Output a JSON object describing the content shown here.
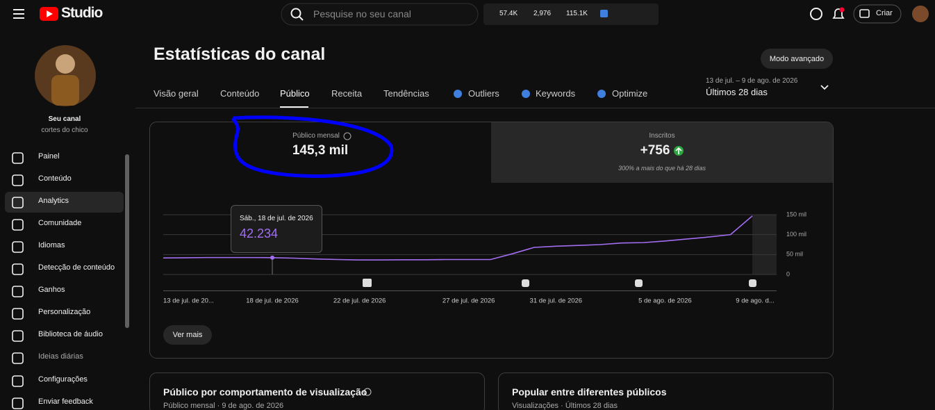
{
  "header": {
    "logo": "Studio",
    "search_placeholder": "Pesquise no seu canal",
    "stats": [
      "57.4K",
      "2,976",
      "115.1K"
    ],
    "create": "Criar"
  },
  "channel": {
    "label": "Seu canal",
    "name": "cortes do chico"
  },
  "nav": [
    "Painel",
    "Conteúdo",
    "Analytics",
    "Comunidade",
    "Idiomas",
    "Detecção de conteúdo",
    "Ganhos",
    "Personalização",
    "Biblioteca de áudio",
    "Ideias diárias",
    "Configurações",
    "Enviar feedback"
  ],
  "page": {
    "title": "Estatísticas do canal",
    "advanced": "Modo avançado",
    "tabs": [
      "Visão geral",
      "Conteúdo",
      "Público",
      "Receita",
      "Tendências",
      "Outliers",
      "Keywords",
      "Optimize"
    ],
    "date_range": "13 de jul. – 9 de ago. de 2026",
    "period": "Últimos 28 dias"
  },
  "metrics": [
    {
      "label": "Público mensal",
      "value": "145,3 mil"
    },
    {
      "label": "Inscritos",
      "value": "+756",
      "note": "300% a mais do que há 28 dias"
    }
  ],
  "chart_data": {
    "type": "line",
    "categories": [
      "13 de jul. de 20...",
      null,
      null,
      null,
      null,
      "18 de jul. de 2026",
      null,
      null,
      null,
      "22 de jul. de 2026",
      null,
      null,
      null,
      null,
      "27 de jul. de 2026",
      null,
      null,
      null,
      "31 de jul. de 2026",
      null,
      null,
      null,
      null,
      "5 de ago. de 2026",
      null,
      null,
      null,
      "9 de ago. d..."
    ],
    "values": [
      41.5,
      42,
      42.5,
      42.5,
      42.5,
      42.234,
      41,
      39,
      37.5,
      36.5,
      36.5,
      37,
      37,
      37.5,
      37.5,
      37.5,
      52,
      68,
      71,
      73,
      75,
      79,
      80,
      84,
      89,
      94,
      100,
      147
    ],
    "color": "#a36ef2",
    "ylim": [
      0,
      150
    ],
    "yticks": [
      0,
      {
        "value": 50,
        "label": "50 mil"
      },
      {
        "value": 100,
        "label": "100 mil"
      },
      {
        "value": 150,
        "label": "150 mil"
      }
    ],
    "grid": true,
    "tooltip": {
      "date": "Sáb., 18 de jul. de 2026",
      "index": 5
    }
  },
  "more": "Ver mais",
  "cards": [
    {
      "title": "Público por comportamento de visualização",
      "subtitle": "Público mensal · 9 de ago. de 2026"
    },
    {
      "title": "Popular entre diferentes públicos",
      "subtitle": "Visualizações · Últimos 28 dias"
    }
  ]
}
